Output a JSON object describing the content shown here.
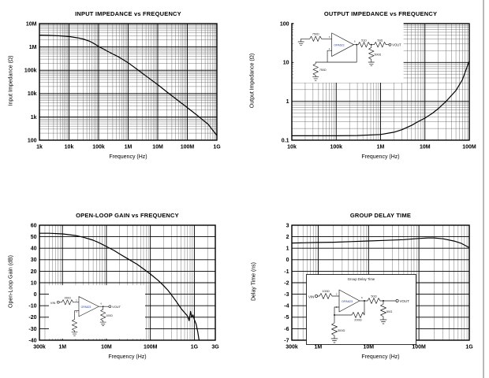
{
  "colors": {
    "background": "#ffffff",
    "curve": "#000000",
    "grid_major": "#000000",
    "grid_minor": "#555555",
    "opamp_label": "#2a3f9f"
  },
  "chart_data": [
    {
      "type": "line",
      "title": "INPUT IMPEDANCE vs FREQUENCY",
      "xlabel": "Frequency (Hz)",
      "ylabel": "Input Impedance (Ω)",
      "x_scale": "log",
      "x_range": [
        1000.0,
        1000000000.0
      ],
      "y_scale": "log",
      "y_range": [
        100.0,
        10000000.0
      ],
      "grid": true,
      "legend": false,
      "x_ticks": [
        [
          1000.0,
          "1k"
        ],
        [
          10000.0,
          "10k"
        ],
        [
          100000.0,
          "100k"
        ],
        [
          1000000.0,
          "1M"
        ],
        [
          10000000.0,
          "10M"
        ],
        [
          100000000.0,
          "100M"
        ],
        [
          1000000000.0,
          "1G"
        ]
      ],
      "y_ticks": [
        [
          100.0,
          "100"
        ],
        [
          1000.0,
          "1k"
        ],
        [
          10000.0,
          "10k"
        ],
        [
          100000.0,
          "100k"
        ],
        [
          1000000.0,
          "1M"
        ],
        [
          10000000.0,
          "10M"
        ]
      ],
      "series": [
        {
          "name": "Input Impedance",
          "points": [
            [
              1000.0,
              3200000.0
            ],
            [
              2000.0,
              3150000.0
            ],
            [
              5000.0,
              3000000.0
            ],
            [
              10000.0,
              2800000.0
            ],
            [
              20000.0,
              2450000.0
            ],
            [
              30000.0,
              2200000.0
            ],
            [
              50000.0,
              1750000.0
            ],
            [
              70000.0,
              1400000.0
            ],
            [
              100000.0,
              1050000.0
            ],
            [
              150000.0,
              800000.0
            ],
            [
              200000.0,
              650000.0
            ],
            [
              300000.0,
              500000.0
            ],
            [
              500000.0,
              360000.0
            ],
            [
              1000000.0,
              210000.0
            ],
            [
              2000000.0,
              110000.0
            ],
            [
              5000000.0,
              46000.0
            ],
            [
              10000000.0,
              24000.0
            ],
            [
              20000000.0,
              12000.0
            ],
            [
              50000000.0,
              4900.0
            ],
            [
              100000000.0,
              2500.0
            ],
            [
              200000000.0,
              1250.0
            ],
            [
              500000000.0,
              490.0
            ],
            [
              1000000000.0,
              160.0
            ]
          ]
        }
      ]
    },
    {
      "type": "line",
      "title": "OUTPUT IMPEDANCE vs FREQUENCY",
      "xlabel": "Frequency (Hz)",
      "ylabel": "Output Impedance (Ω)",
      "x_scale": "log",
      "x_range": [
        10000.0,
        100000000.0
      ],
      "y_scale": "log",
      "y_range": [
        0.1,
        100
      ],
      "grid": true,
      "legend": false,
      "x_ticks": [
        [
          10000.0,
          "10k"
        ],
        [
          100000.0,
          "100k"
        ],
        [
          1000000.0,
          "1M"
        ],
        [
          10000000.0,
          "10M"
        ],
        [
          100000000.0,
          "100M"
        ]
      ],
      "y_ticks": [
        [
          0.1,
          "0.1"
        ],
        [
          1,
          "1"
        ],
        [
          10,
          "10"
        ],
        [
          100,
          "100"
        ]
      ],
      "series": [
        {
          "name": "Output Impedance",
          "points": [
            [
              10000.0,
              0.13
            ],
            [
              30000.0,
              0.13
            ],
            [
              100000.0,
              0.13
            ],
            [
              300000.0,
              0.132
            ],
            [
              1000000.0,
              0.14
            ],
            [
              2000000.0,
              0.16
            ],
            [
              3000000.0,
              0.185
            ],
            [
              5000000.0,
              0.24
            ],
            [
              7000000.0,
              0.3
            ],
            [
              10000000.0,
              0.37
            ],
            [
              15000000.0,
              0.5
            ],
            [
              20000000.0,
              0.65
            ],
            [
              30000000.0,
              1.0
            ],
            [
              50000000.0,
              1.9
            ],
            [
              70000000.0,
              3.6
            ],
            [
              100000000.0,
              11
            ]
          ]
        }
      ]
    },
    {
      "type": "line",
      "title": "OPEN-LOOP GAIN vs FREQUENCY",
      "xlabel": "Frequency (Hz)",
      "ylabel": "Open-Loop Gain (dB)",
      "x_scale": "log",
      "x_range": [
        300000.0,
        3000000000.0
      ],
      "y_scale": "linear",
      "y_range": [
        -40,
        60
      ],
      "grid": true,
      "legend": false,
      "x_ticks": [
        [
          300000.0,
          "300k"
        ],
        [
          1000000.0,
          "1M"
        ],
        [
          10000000.0,
          "10M"
        ],
        [
          100000000.0,
          "100M"
        ],
        [
          1000000000.0,
          "1G"
        ],
        [
          3000000000.0,
          "3G"
        ]
      ],
      "y_ticks": [
        [
          60,
          "60"
        ],
        [
          50,
          "50"
        ],
        [
          40,
          "40"
        ],
        [
          30,
          "30"
        ],
        [
          20,
          "20"
        ],
        [
          10,
          "10"
        ],
        [
          0,
          "0"
        ],
        [
          -10,
          "-10"
        ],
        [
          -20,
          "-20"
        ],
        [
          -30,
          "-30"
        ],
        [
          -40,
          "-40"
        ]
      ],
      "series": [
        {
          "name": "Open-Loop Gain",
          "points": [
            [
              300000.0,
              53
            ],
            [
              500000.0,
              53
            ],
            [
              1000000.0,
              52.5
            ],
            [
              2000000.0,
              51
            ],
            [
              3000000.0,
              49.5
            ],
            [
              5000000.0,
              47
            ],
            [
              7000000.0,
              44.5
            ],
            [
              10000000.0,
              41.5
            ],
            [
              15000000.0,
              38
            ],
            [
              20000000.0,
              35
            ],
            [
              30000000.0,
              31
            ],
            [
              50000000.0,
              26
            ],
            [
              70000000.0,
              22
            ],
            [
              100000000.0,
              17.5
            ],
            [
              150000000.0,
              12
            ],
            [
              200000000.0,
              7.5
            ],
            [
              250000000.0,
              3.5
            ],
            [
              300000000.0,
              -0.5
            ],
            [
              400000000.0,
              -7
            ],
            [
              500000000.0,
              -12.5
            ],
            [
              600000000.0,
              -16
            ],
            [
              700000000.0,
              -19
            ],
            [
              760000000.0,
              -23
            ],
            [
              820000000.0,
              -15
            ],
            [
              870000000.0,
              -20
            ],
            [
              930000000.0,
              -18
            ],
            [
              1000000000.0,
              -22
            ],
            [
              1100000000.0,
              -26
            ],
            [
              1200000000.0,
              -33
            ],
            [
              1280000000.0,
              -40
            ]
          ]
        }
      ]
    },
    {
      "type": "line",
      "title": "GROUP DELAY TIME",
      "xlabel": "Frequency (Hz)",
      "ylabel": "Delay Time (ns)",
      "x_scale": "log",
      "x_range": [
        300000.0,
        1000000000.0
      ],
      "y_scale": "linear",
      "y_range": [
        -7,
        3
      ],
      "grid": true,
      "legend": false,
      "x_ticks": [
        [
          300000.0,
          "300k"
        ],
        [
          1000000.0,
          "1M"
        ],
        [
          10000000.0,
          "10M"
        ],
        [
          100000000.0,
          "100M"
        ],
        [
          1000000000.0,
          "1G"
        ]
      ],
      "y_ticks": [
        [
          3,
          "3"
        ],
        [
          2,
          "2"
        ],
        [
          1,
          "1"
        ],
        [
          0,
          "0"
        ],
        [
          -1,
          "-1"
        ],
        [
          -2,
          "-2"
        ],
        [
          -3,
          "-3"
        ],
        [
          -4,
          "-4"
        ],
        [
          -5,
          "-5"
        ],
        [
          -6,
          "-6"
        ],
        [
          -7,
          "-7"
        ]
      ],
      "series": [
        {
          "name": "Delay Time",
          "points": [
            [
              300000.0,
              1.45
            ],
            [
              500000.0,
              1.47
            ],
            [
              1000000.0,
              1.5
            ],
            [
              2000000.0,
              1.52
            ],
            [
              5000000.0,
              1.58
            ],
            [
              10000000.0,
              1.63
            ],
            [
              20000000.0,
              1.68
            ],
            [
              50000000.0,
              1.75
            ],
            [
              100000000.0,
              1.85
            ],
            [
              150000000.0,
              1.9
            ],
            [
              200000000.0,
              1.9
            ],
            [
              300000000.0,
              1.82
            ],
            [
              500000000.0,
              1.62
            ],
            [
              700000000.0,
              1.42
            ],
            [
              1000000000.0,
              1.05
            ]
          ]
        }
      ]
    }
  ],
  "insets": {
    "output_impedance": {
      "opamp": "OPA623",
      "pin_top": "3",
      "pin_bottom": "2",
      "pin_out": "6",
      "r_input": "750Ω",
      "r_feedback": "750Ω",
      "r_series": "51Ω",
      "r_shunt": "500Ω",
      "r_out": "50Ω",
      "out_label": "VOUT"
    },
    "open_loop": {
      "opamp": "OPA623",
      "pin_top": "2",
      "pin_bottom": "3",
      "pin_out": "6",
      "in_label": "VIN",
      "r_input": "150Ω",
      "r_load": "100Ω",
      "out_label": "VOUT"
    },
    "group_delay": {
      "title": "Group Delay Time",
      "opamp": "OPA623",
      "pin_top": "2",
      "pin_bottom": "3",
      "pin_out": "6",
      "in_label": "VIN",
      "r_input": "100Ω",
      "r_series": "50Ω",
      "r_shunt": "50Ω",
      "r_feedback": "200Ω",
      "r_ground": "300Ω",
      "out_label": "VOUT"
    }
  }
}
